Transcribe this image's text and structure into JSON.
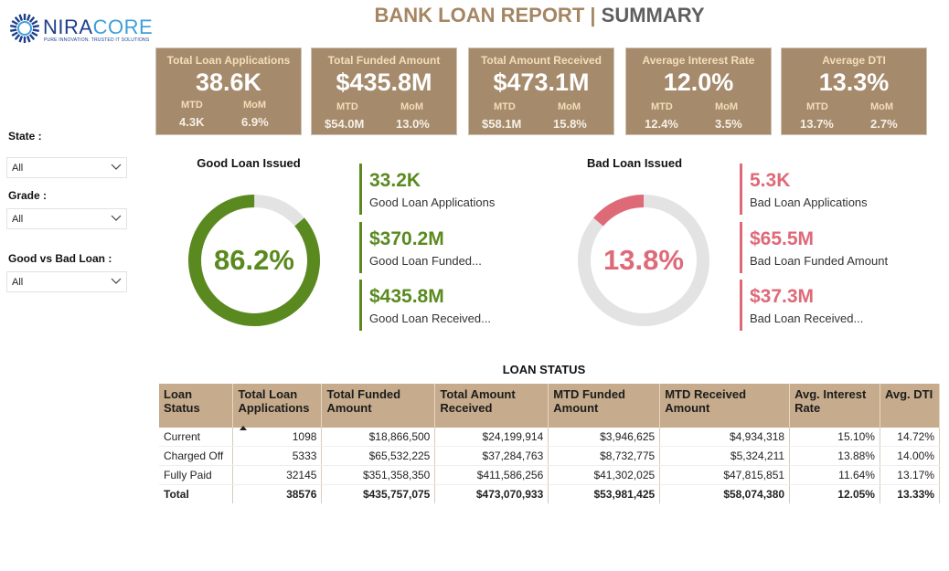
{
  "logo": {
    "name_a": "NIRA",
    "name_b": "CORE",
    "tagline": "PURE INNOVATION. TRUSTED IT SOLUTIONS"
  },
  "header": {
    "title_part1": "BANK LOAN REPORT |",
    "title_part2": "SUMMARY"
  },
  "kpis": [
    {
      "label": "Total Loan Applications",
      "value": "38.6K",
      "mtd_label": "MTD",
      "mtd": "4.3K",
      "mom_label": "MoM",
      "mom": "6.9%"
    },
    {
      "label": "Total Funded Amount",
      "value": "$435.8M",
      "mtd_label": "MTD",
      "mtd": "$54.0M",
      "mom_label": "MoM",
      "mom": "13.0%"
    },
    {
      "label": "Total Amount Received",
      "value": "$473.1M",
      "mtd_label": "MTD",
      "mtd": "$58.1M",
      "mom_label": "MoM",
      "mom": "15.8%"
    },
    {
      "label": "Average Interest Rate",
      "value": "12.0%",
      "mtd_label": "MTD",
      "mtd": "12.4%",
      "mom_label": "MoM",
      "mom": "3.5%"
    },
    {
      "label": "Average DTI",
      "value": "13.3%",
      "mtd_label": "MTD",
      "mtd": "13.7%",
      "mom_label": "MoM",
      "mom": "2.7%"
    }
  ],
  "filters": {
    "state": {
      "label": "State :",
      "value": "All"
    },
    "grade": {
      "label": "Grade :",
      "value": "All"
    },
    "good_bad": {
      "label": "Good vs Bad Loan :",
      "value": "All"
    }
  },
  "good_loan": {
    "title": "Good Loan Issued",
    "percent_label": "86.2%",
    "percent": 86.2,
    "color": "#5a8a1f",
    "stats": [
      {
        "value": "33.2K",
        "label": "Good Loan Applications"
      },
      {
        "value": "$370.2M",
        "label": "Good Loan Funded..."
      },
      {
        "value": "$435.8M",
        "label": "Good Loan Received..."
      }
    ]
  },
  "bad_loan": {
    "title": "Bad Loan Issued",
    "percent_label": "13.8%",
    "percent": 13.8,
    "color": "#de6a78",
    "stats": [
      {
        "value": "5.3K",
        "label": "Bad Loan Applications"
      },
      {
        "value": "$65.5M",
        "label": "Bad Loan Funded Amount"
      },
      {
        "value": "$37.3M",
        "label": "Bad Loan Received..."
      }
    ]
  },
  "loan_status": {
    "title": "LOAN STATUS",
    "columns": [
      "Loan Status",
      "Total Loan Applications",
      "Total Funded Amount",
      "Total Amount Received",
      "MTD Funded Amount",
      "MTD Received Amount",
      "Avg. Interest Rate",
      "Avg. DTI"
    ],
    "rows": [
      [
        "Current",
        "1098",
        "$18,866,500",
        "$24,199,914",
        "$3,946,625",
        "$4,934,318",
        "15.10%",
        "14.72%"
      ],
      [
        "Charged Off",
        "5333",
        "$65,532,225",
        "$37,284,763",
        "$8,732,775",
        "$5,324,211",
        "13.88%",
        "14.00%"
      ],
      [
        "Fully Paid",
        "32145",
        "$351,358,350",
        "$411,586,256",
        "$41,302,025",
        "$47,815,851",
        "11.64%",
        "13.17%"
      ]
    ],
    "total": [
      "Total",
      "38576",
      "$435,757,075",
      "$473,070,933",
      "$53,981,425",
      "$58,074,380",
      "12.05%",
      "13.33%"
    ]
  }
}
